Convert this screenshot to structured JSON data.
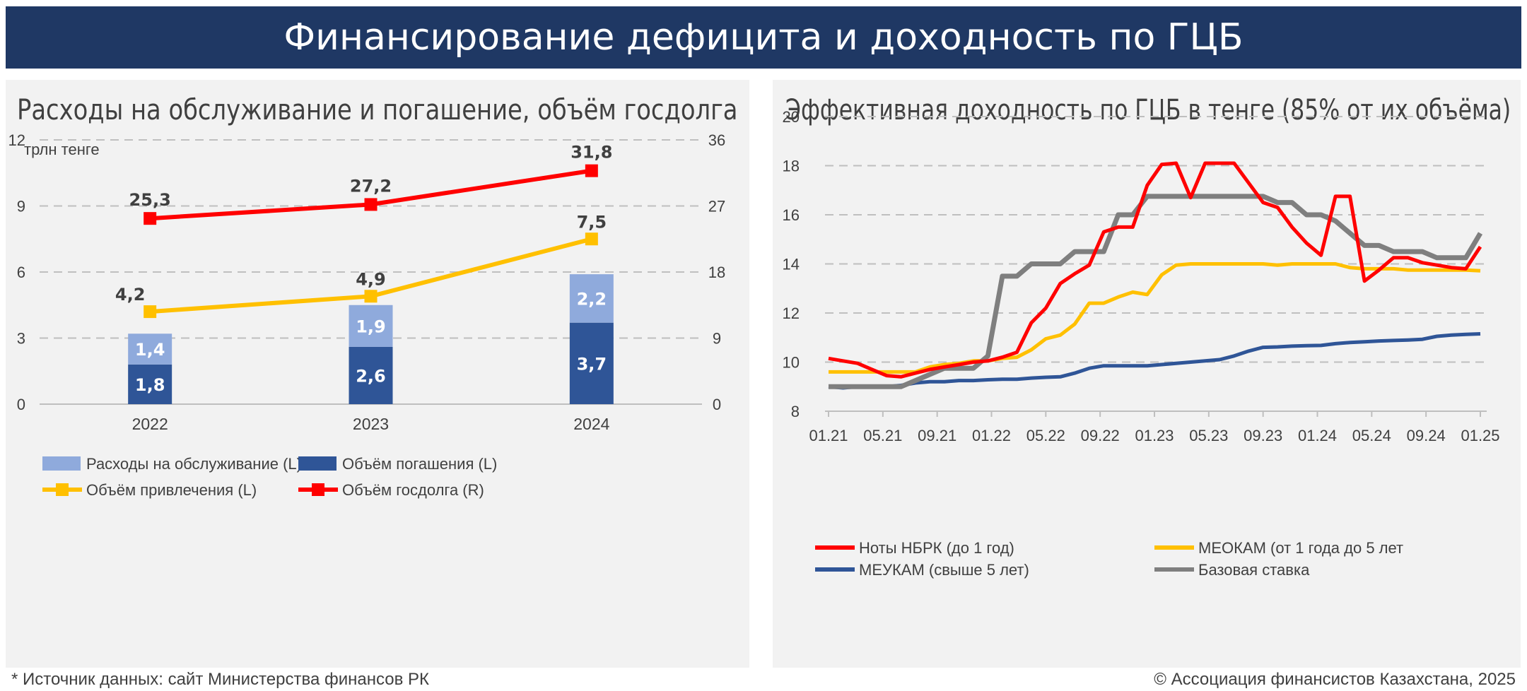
{
  "header": {
    "title": "Финансирование дефицита и доходность по ГЦБ"
  },
  "colors": {
    "banner": "#1f3864",
    "service": "#8faadc",
    "repayment": "#2f5597",
    "borrowing": "#ffc000",
    "debt": "#ff0000",
    "nbrk_notes": "#ff0000",
    "meokam": "#ffc000",
    "meukam": "#2f5597",
    "base_rate": "#7f7f7f"
  },
  "left_panel": {
    "title": "Расходы на обслуживание и погашение, объём госдолга",
    "unit": "трлн тенге"
  },
  "right_panel": {
    "title": "Эффективная доходность по ГЦБ в тенге (85% от их объёма)"
  },
  "footer": {
    "source": "* Источник данных: сайт Министерства финансов РК",
    "copyright": "© Ассоциация финансистов Казахстана, 2025"
  },
  "chart_data": [
    {
      "type": "bar",
      "title": "Расходы на обслуживание и погашение, объём госдолга",
      "ylabel": "трлн тенге",
      "categories": [
        "2022",
        "2023",
        "2024"
      ],
      "ylim": [
        0,
        12
      ],
      "y_ticks": [
        "0",
        "3",
        "6",
        "9",
        "12"
      ],
      "y2lim": [
        0,
        36
      ],
      "y2_ticks": [
        "0",
        "9",
        "18",
        "27",
        "36"
      ],
      "grid": true,
      "legend_position": "bottom",
      "series": [
        {
          "name": "Расходы на обслуживание (L)",
          "kind": "stacked-bar",
          "axis": "left",
          "color_key": "service",
          "values": [
            1.4,
            1.9,
            2.2
          ],
          "labels": [
            "1,4",
            "1,9",
            "2,2"
          ]
        },
        {
          "name": "Объём погашения (L)",
          "kind": "stacked-bar",
          "axis": "left",
          "color_key": "repayment",
          "values": [
            1.8,
            2.6,
            3.7
          ],
          "labels": [
            "1,8",
            "2,6",
            "3,7"
          ]
        },
        {
          "name": "Объём привлечения (L)",
          "kind": "line",
          "axis": "left",
          "color_key": "borrowing",
          "values": [
            4.2,
            4.9,
            7.5
          ],
          "labels": [
            "4,2",
            "4,9",
            "7,5"
          ]
        },
        {
          "name": "Объём госдолга (R)",
          "kind": "line",
          "axis": "right",
          "color_key": "debt",
          "values": [
            25.3,
            27.2,
            31.8
          ],
          "labels": [
            "25,3",
            "27,2",
            "31,8"
          ]
        }
      ]
    },
    {
      "type": "line",
      "title": "Эффективная доходность по ГЦБ в тенге (85% от их объёма)",
      "x_ticks": [
        "01.21",
        "05.21",
        "09.21",
        "01.22",
        "05.22",
        "09.22",
        "01.23",
        "05.23",
        "09.23",
        "01.24",
        "05.24",
        "09.24",
        "01.25"
      ],
      "ylim": [
        8,
        20
      ],
      "y_ticks": [
        "8",
        "10",
        "12",
        "14",
        "16",
        "18",
        "20"
      ],
      "grid": true,
      "legend_position": "bottom",
      "series": [
        {
          "name": "Ноты НБРК (до 1 год)",
          "color_key": "nbrk_notes",
          "values": [
            10.15,
            10.05,
            9.95,
            9.7,
            9.45,
            9.4,
            9.55,
            9.7,
            9.8,
            9.9,
            10.0,
            10.05,
            10.2,
            10.4,
            11.6,
            12.2,
            13.2,
            13.6,
            13.95,
            15.3,
            15.5,
            15.5,
            17.2,
            18.05,
            18.1,
            16.7,
            18.1,
            18.1,
            18.1,
            17.3,
            16.5,
            16.3,
            15.5,
            14.85,
            14.35,
            16.75,
            16.75,
            13.3,
            13.75,
            14.25,
            14.25,
            14.05,
            13.95,
            13.85,
            13.8,
            14.7
          ]
        },
        {
          "name": "МЕОКАМ (от 1 года до 5 лет",
          "color_key": "meokam",
          "values": [
            9.6,
            9.6,
            9.6,
            9.6,
            9.6,
            9.6,
            9.6,
            9.8,
            9.9,
            9.95,
            10.05,
            10.05,
            10.15,
            10.2,
            10.5,
            10.95,
            11.1,
            11.55,
            12.4,
            12.4,
            12.65,
            12.85,
            12.75,
            13.55,
            13.95,
            14.0,
            14.0,
            14.0,
            14.0,
            14.0,
            14.0,
            13.95,
            14.0,
            14.0,
            14.0,
            14.0,
            13.85,
            13.8,
            13.8,
            13.8,
            13.75,
            13.75,
            13.75,
            13.75,
            13.75,
            13.72
          ]
        },
        {
          "name": "МЕУКАМ (свыше 5 лет)",
          "color_key": "meukam",
          "values": [
            9.0,
            8.95,
            9.0,
            9.0,
            9.0,
            9.05,
            9.15,
            9.2,
            9.2,
            9.25,
            9.25,
            9.28,
            9.3,
            9.3,
            9.35,
            9.38,
            9.4,
            9.55,
            9.75,
            9.85,
            9.85,
            9.85,
            9.85,
            9.9,
            9.95,
            10.0,
            10.05,
            10.1,
            10.25,
            10.45,
            10.6,
            10.62,
            10.65,
            10.67,
            10.68,
            10.75,
            10.8,
            10.83,
            10.86,
            10.88,
            10.9,
            10.93,
            11.05,
            11.1,
            11.13,
            11.15
          ]
        },
        {
          "name": "Базовая ставка",
          "color_key": "base_rate",
          "values": [
            9.0,
            9.0,
            9.0,
            9.0,
            9.0,
            9.0,
            9.25,
            9.5,
            9.75,
            9.75,
            9.75,
            10.25,
            13.5,
            13.5,
            14.0,
            14.0,
            14.0,
            14.5,
            14.5,
            14.5,
            16.0,
            16.0,
            16.75,
            16.75,
            16.75,
            16.75,
            16.75,
            16.75,
            16.75,
            16.75,
            16.75,
            16.5,
            16.5,
            16.0,
            16.0,
            15.75,
            15.25,
            14.75,
            14.75,
            14.5,
            14.5,
            14.5,
            14.25,
            14.25,
            14.25,
            15.25
          ]
        }
      ]
    }
  ]
}
